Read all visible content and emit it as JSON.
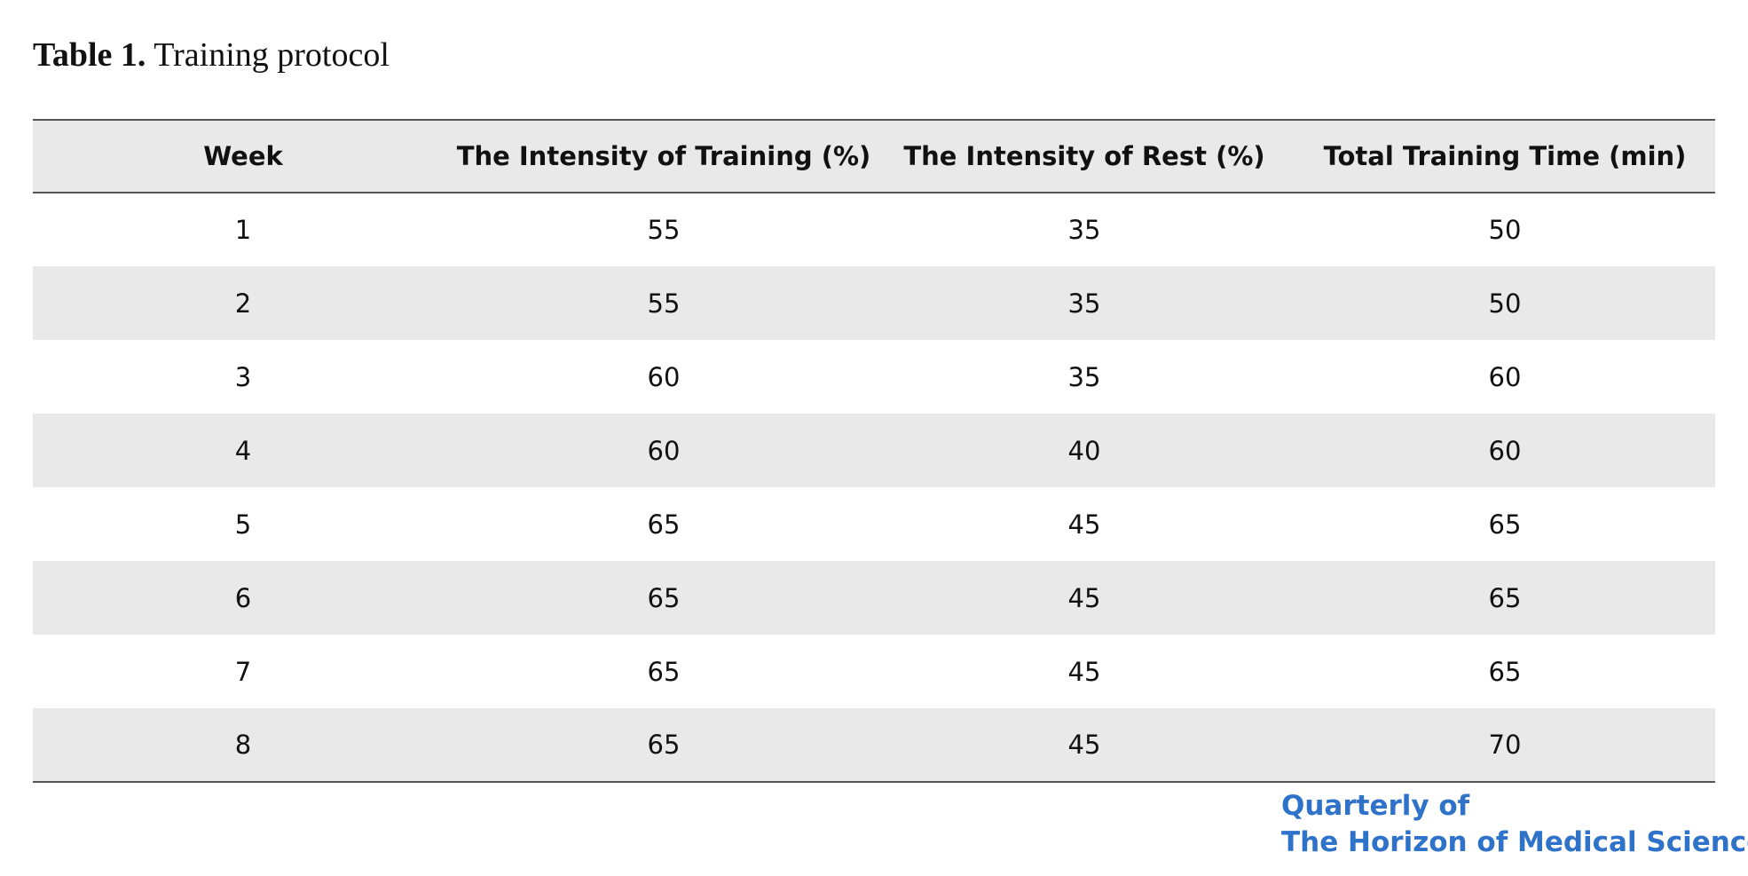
{
  "caption": {
    "label": "Table 1.",
    "title": "Training protocol"
  },
  "table": {
    "columns": [
      "Week",
      "The Intensity of Training (%)",
      "The Intensity of Rest (%)",
      "Total Training Time (min)"
    ],
    "rows": [
      [
        "1",
        "55",
        "35",
        "50"
      ],
      [
        "2",
        "55",
        "35",
        "50"
      ],
      [
        "3",
        "60",
        "35",
        "60"
      ],
      [
        "4",
        "60",
        "40",
        "60"
      ],
      [
        "5",
        "65",
        "45",
        "65"
      ],
      [
        "6",
        "65",
        "45",
        "65"
      ],
      [
        "7",
        "65",
        "45",
        "65"
      ],
      [
        "8",
        "65",
        "45",
        "70"
      ]
    ]
  },
  "journal_logo": {
    "line1": "Quarterly of",
    "line2": "The Horizon of Medical Sciences"
  },
  "colors": {
    "header_band": "#e9e9e9",
    "striped_row": "#e9e9e9",
    "rule_line": "#555555",
    "logo_blue": "#2f72c9",
    "logo_light_blue": "#6aa6e8"
  }
}
